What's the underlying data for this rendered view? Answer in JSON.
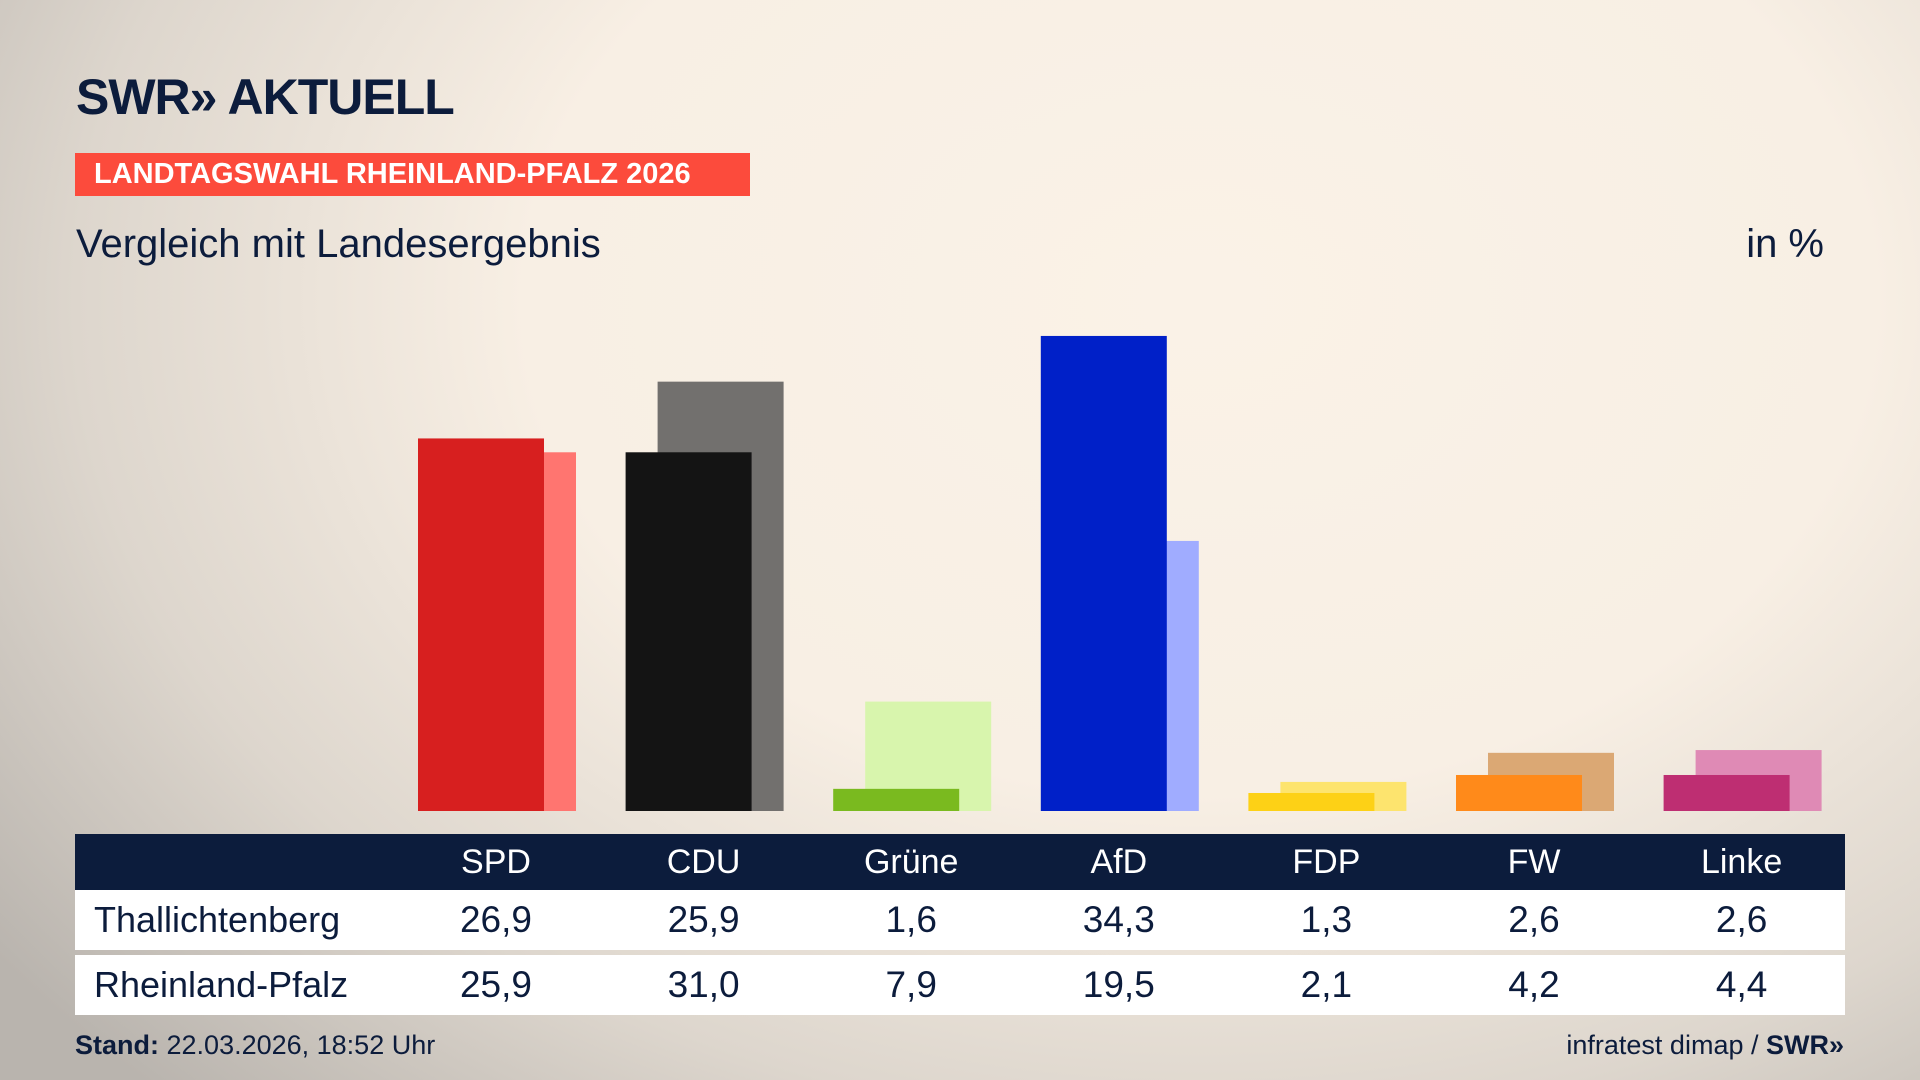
{
  "header": {
    "logo": "SWR» AKTUELL",
    "tag": "LANDTAGSWAHL RHEINLAND-PFALZ 2026",
    "subtitle": "Vergleich mit Landesergebnis",
    "unit": "in %"
  },
  "chart_data": {
    "type": "bar",
    "categories": [
      "SPD",
      "CDU",
      "Grüne",
      "AfD",
      "FDP",
      "FW",
      "Linke"
    ],
    "series": [
      {
        "name": "Thallichtenberg",
        "values": [
          26.9,
          25.9,
          1.6,
          34.3,
          1.3,
          2.6,
          2.6
        ],
        "labels": [
          "26,9",
          "25,9",
          "1,6",
          "34,3",
          "1,3",
          "2,6",
          "2,6"
        ]
      },
      {
        "name": "Rheinland-Pfalz",
        "values": [
          25.9,
          31.0,
          7.9,
          19.5,
          2.1,
          4.2,
          4.4
        ],
        "labels": [
          "25,9",
          "31,0",
          "7,9",
          "19,5",
          "2,1",
          "4,2",
          "4,4"
        ]
      }
    ],
    "colors": [
      "#d71f1f",
      "#141414",
      "#7aba1f",
      "#0020c8",
      "#fdd116",
      "#ff8a1a",
      "#be2e72"
    ],
    "colors_comparison": [
      "#ff7570",
      "#72706e",
      "#d8f5ad",
      "#a0acff",
      "#fde46e",
      "#dba874",
      "#df8ab5"
    ],
    "ylim": [
      0,
      35
    ]
  },
  "footer": {
    "stand_label": "Stand:",
    "stand_value": "22.03.2026, 18:52 Uhr",
    "source": "infratest dimap / ",
    "source_logo": "SWR»"
  }
}
